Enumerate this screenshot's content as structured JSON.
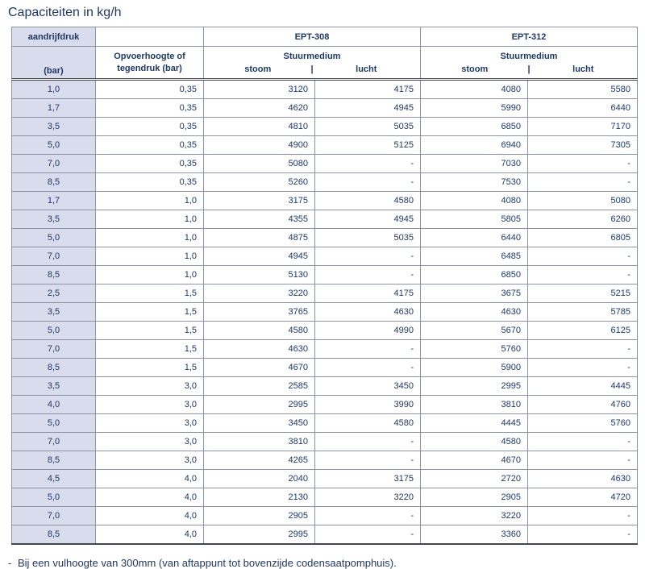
{
  "page": {
    "title": "Capaciteiten in kg/h"
  },
  "table": {
    "header": {
      "col1_title": "aandrijfdruk",
      "col1_unit": "(bar)",
      "col2_line1": "Opvoerhoogte of",
      "col2_line2": "tegendruk (bar)",
      "groups": [
        {
          "label": "EPT-308",
          "medium_title": "Stuurmedium",
          "sub_left": "stoom",
          "separator": "|",
          "sub_right": "lucht"
        },
        {
          "label": "EPT-312",
          "medium_title": "Stuurmedium",
          "sub_left": "stoom",
          "separator": "|",
          "sub_right": "lucht"
        }
      ]
    },
    "rows": [
      [
        "1,0",
        "0,35",
        "3120",
        "4175",
        "4080",
        "5580"
      ],
      [
        "1,7",
        "0,35",
        "4620",
        "4945",
        "5990",
        "6440"
      ],
      [
        "3,5",
        "0,35",
        "4810",
        "5035",
        "6850",
        "7170"
      ],
      [
        "5,0",
        "0,35",
        "4900",
        "5125",
        "6940",
        "7305"
      ],
      [
        "7,0",
        "0,35",
        "5080",
        "-",
        "7030",
        "-"
      ],
      [
        "8,5",
        "0,35",
        "5260",
        "-",
        "7530",
        "-"
      ],
      [
        "1,7",
        "1,0",
        "3175",
        "4580",
        "4080",
        "5080"
      ],
      [
        "3,5",
        "1,0",
        "4355",
        "4945",
        "5805",
        "6260"
      ],
      [
        "5,0",
        "1,0",
        "4875",
        "5035",
        "6440",
        "6805"
      ],
      [
        "7,0",
        "1,0",
        "4945",
        "-",
        "6485",
        "-"
      ],
      [
        "8,5",
        "1,0",
        "5130",
        "-",
        "6850",
        "-"
      ],
      [
        "2,5",
        "1,5",
        "3220",
        "4175",
        "3675",
        "5215"
      ],
      [
        "3,5",
        "1,5",
        "3765",
        "4630",
        "4630",
        "5785"
      ],
      [
        "5,0",
        "1,5",
        "4580",
        "4990",
        "5670",
        "6125"
      ],
      [
        "7,0",
        "1,5",
        "4630",
        "-",
        "5760",
        "-"
      ],
      [
        "8,5",
        "1,5",
        "4670",
        "-",
        "5900",
        "-"
      ],
      [
        "3,5",
        "3,0",
        "2585",
        "3450",
        "2995",
        "4445"
      ],
      [
        "4,0",
        "3,0",
        "2995",
        "3990",
        "3810",
        "4760"
      ],
      [
        "5,0",
        "3,0",
        "3450",
        "4580",
        "4445",
        "5760"
      ],
      [
        "7,0",
        "3,0",
        "3810",
        "-",
        "4580",
        "-"
      ],
      [
        "8,5",
        "3,0",
        "4265",
        "-",
        "4670",
        "-"
      ],
      [
        "4,5",
        "4,0",
        "2040",
        "3175",
        "2720",
        "4630"
      ],
      [
        "5,0",
        "4,0",
        "2130",
        "3220",
        "2905",
        "4720"
      ],
      [
        "7,0",
        "4,0",
        "2905",
        "-",
        "3220",
        "-"
      ],
      [
        "8,5",
        "4,0",
        "2995",
        "-",
        "3360",
        "-"
      ]
    ]
  },
  "footnote": {
    "dash": "-",
    "text": "Bij een vulhoogte van 300mm (van aftappunt tot bovenzijde codensaatpomphuis)."
  },
  "colors": {
    "text_navy": "#1f3864",
    "header_fill": "#d9dcec",
    "border_gray": "#8d93a0",
    "border_dark": "#43464f"
  }
}
